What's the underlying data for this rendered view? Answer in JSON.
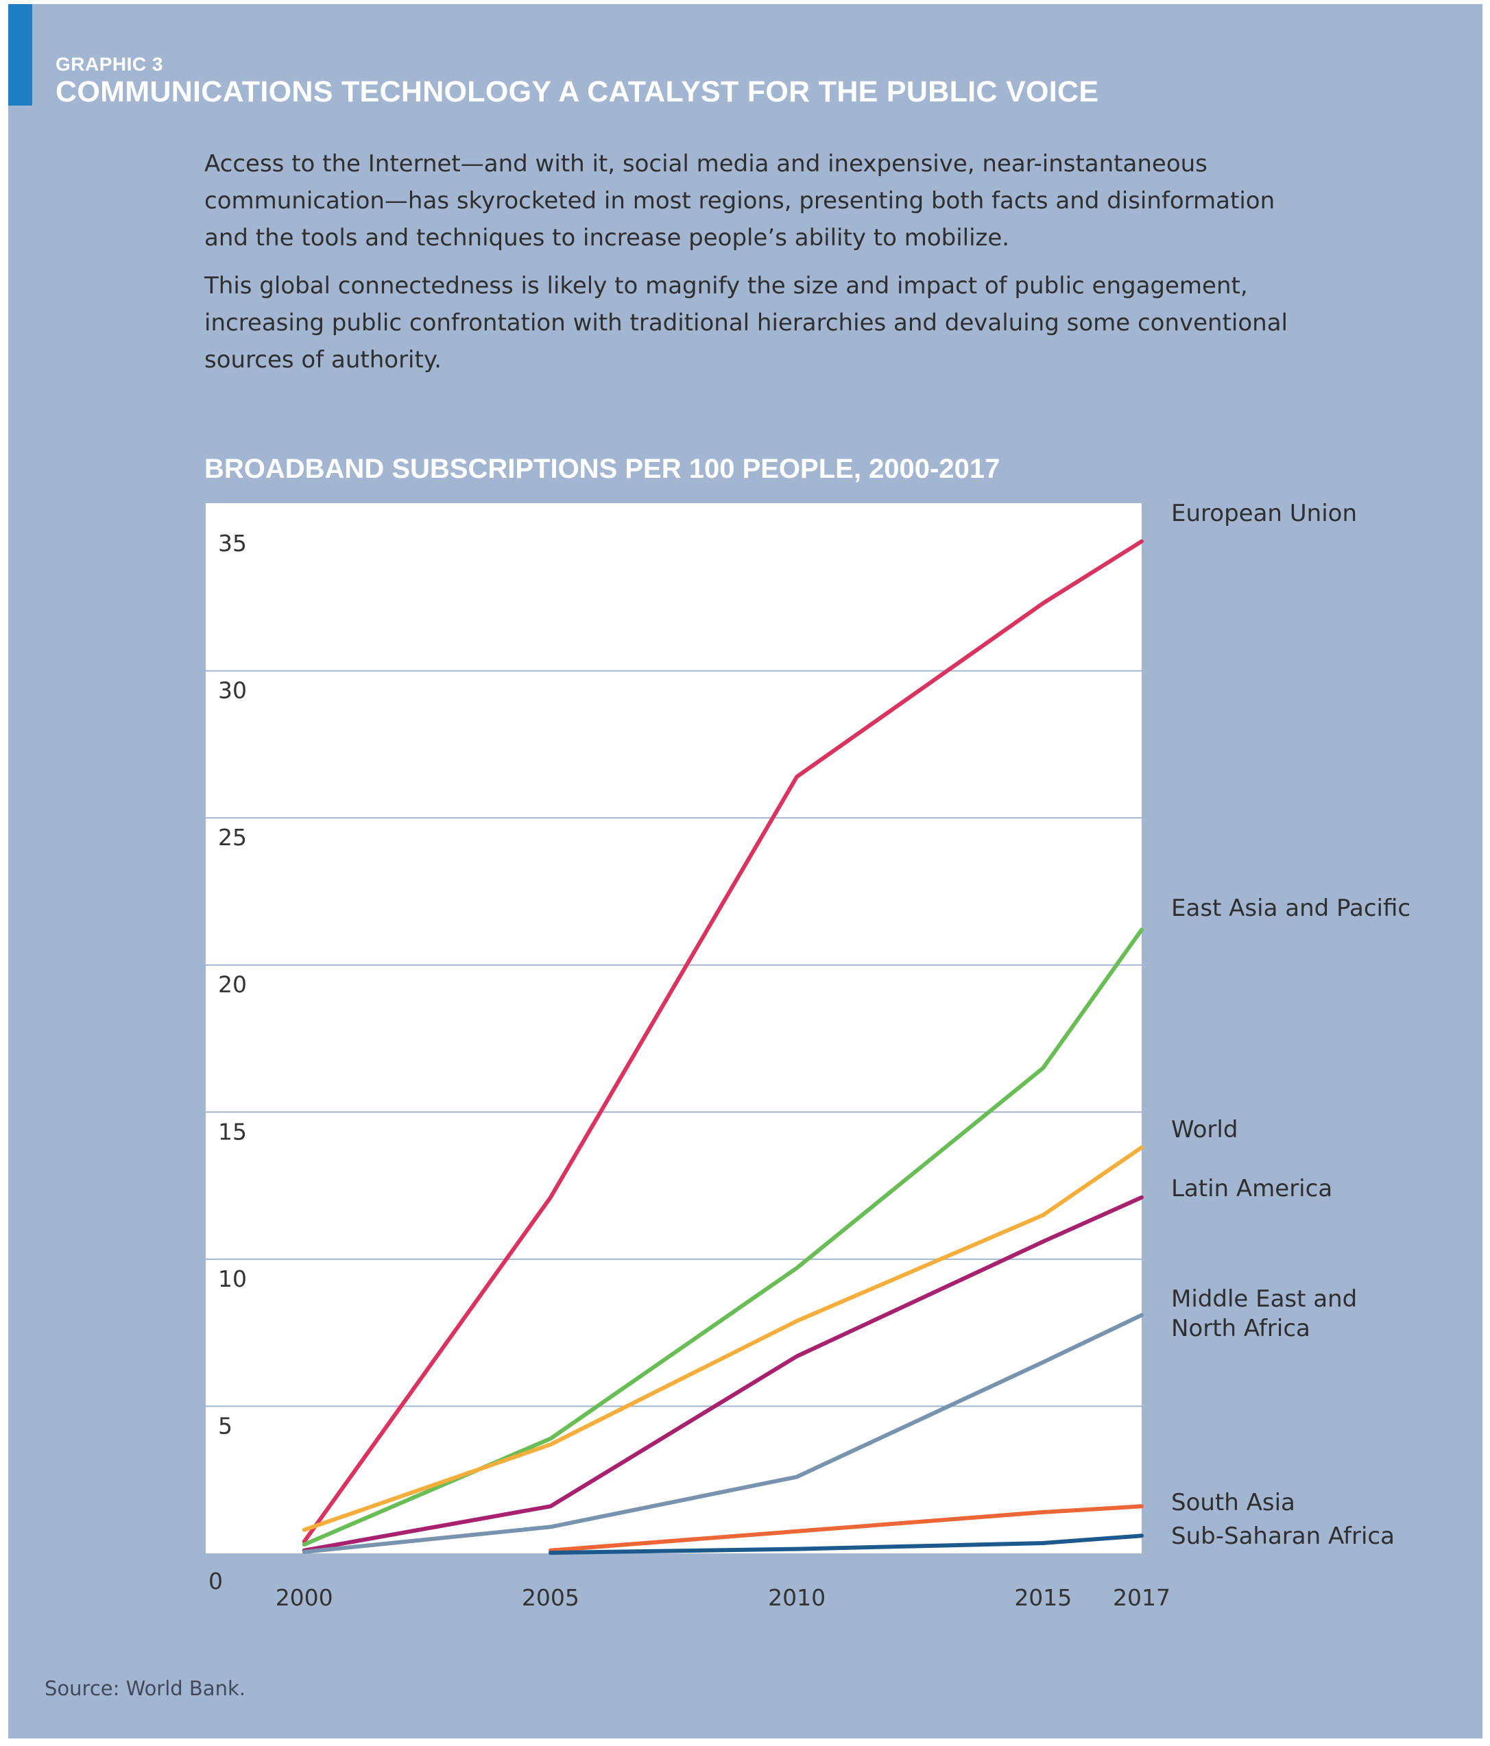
{
  "header": {
    "graphic_label": "GRAPHIC 3",
    "title": "COMMUNICATIONS TECHNOLOGY A CATALYST FOR THE PUBLIC VOICE"
  },
  "intro": {
    "paragraph_1": "Access to the Internet—and with it, social media and inexpensive, near-instantaneous communication—has skyrocketed in most regions, presenting both facts and disinformation and the tools and techniques to increase people’s ability to mobilize.",
    "paragraph_2": "This global connectedness is likely to magnify the size and impact of public engagement, increasing public confrontation with traditional hierarchies and devaluing some conventional sources of authority."
  },
  "footer": {
    "source": "Source: World Bank."
  },
  "colors": {
    "panel": "#a2b6d1",
    "accent": "#1f7fc4",
    "plot_background": "#ffffff",
    "grid": "#a2b6d1"
  },
  "chart_data": {
    "type": "line",
    "title": "BROADBAND SUBSCRIPTIONS PER 100 PEOPLE, 2000-2017",
    "xlabel": "",
    "ylabel": "",
    "xlim": [
      1998,
      2017
    ],
    "ylim": [
      0,
      35
    ],
    "x_ticks": [
      2000,
      2005,
      2010,
      2015,
      2017
    ],
    "y_ticks": [
      0,
      5,
      10,
      15,
      20,
      25,
      30,
      35
    ],
    "grid": true,
    "legend": "direct labels at line ends (right)",
    "series": [
      {
        "name": "European Union",
        "color": "#d9345f",
        "x": [
          2000,
          2005,
          2010,
          2015,
          2017
        ],
        "y": [
          0.4,
          12.1,
          26.4,
          32.3,
          34.4
        ]
      },
      {
        "name": "East Asia and Pacific",
        "color": "#69bd55",
        "x": [
          2000,
          2005,
          2010,
          2015,
          2017
        ],
        "y": [
          0.3,
          3.9,
          9.7,
          16.5,
          21.2
        ]
      },
      {
        "name": "World",
        "color": "#f5ae3c",
        "x": [
          2000,
          2005,
          2010,
          2015,
          2017
        ],
        "y": [
          0.8,
          3.7,
          7.9,
          11.5,
          13.8
        ]
      },
      {
        "name": "Latin America",
        "color": "#a8216e",
        "x": [
          2000,
          2005,
          2010,
          2015,
          2017
        ],
        "y": [
          0.1,
          1.6,
          6.7,
          10.6,
          12.1
        ]
      },
      {
        "name": "Middle East and\nNorth Africa",
        "color": "#7893ad",
        "x": [
          2000,
          2005,
          2010,
          2015,
          2017
        ],
        "y": [
          0.05,
          0.9,
          2.6,
          6.5,
          8.1
        ]
      },
      {
        "name": "South Asia",
        "color": "#ee6635",
        "x": [
          2005,
          2010,
          2015,
          2017
        ],
        "y": [
          0.1,
          0.75,
          1.4,
          1.6
        ]
      },
      {
        "name": "Sub-Saharan Africa",
        "color": "#1c5a8e",
        "x": [
          2005,
          2010,
          2015,
          2017
        ],
        "y": [
          0.02,
          0.15,
          0.35,
          0.6
        ]
      }
    ]
  }
}
